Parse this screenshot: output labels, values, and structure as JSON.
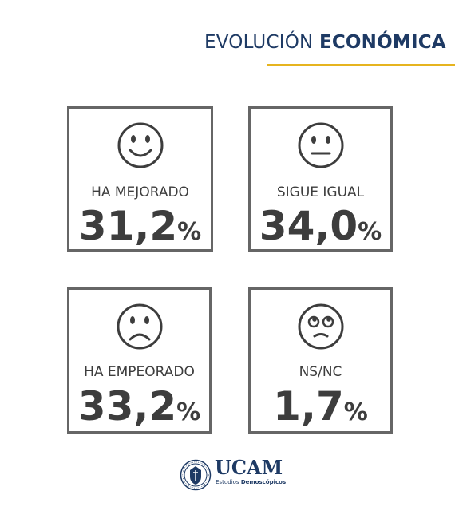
{
  "header": {
    "title_regular": "EVOLUCIÓN",
    "title_bold": "ECONÓMICA",
    "accent_color": "#e6b41f",
    "brand_color": "#1e3a64"
  },
  "cards": [
    {
      "face_icon": "happy-face-icon",
      "label": "HA MEJORADO",
      "value": "31,2",
      "unit": "%"
    },
    {
      "face_icon": "neutral-face-icon",
      "label": "SIGUE IGUAL",
      "value": "34,0",
      "unit": "%"
    },
    {
      "face_icon": "sad-face-icon",
      "label": "HA EMPEORADO",
      "value": "33,2",
      "unit": "%"
    },
    {
      "face_icon": "rolling-eyes-face-icon",
      "label": "NS/NC",
      "value": "1,7",
      "unit": "%"
    }
  ],
  "footer": {
    "brand": "UCAM",
    "subtitle_regular": "Estudios",
    "subtitle_bold": "Demoscópicos",
    "logo_icon": "university-seal-icon"
  }
}
